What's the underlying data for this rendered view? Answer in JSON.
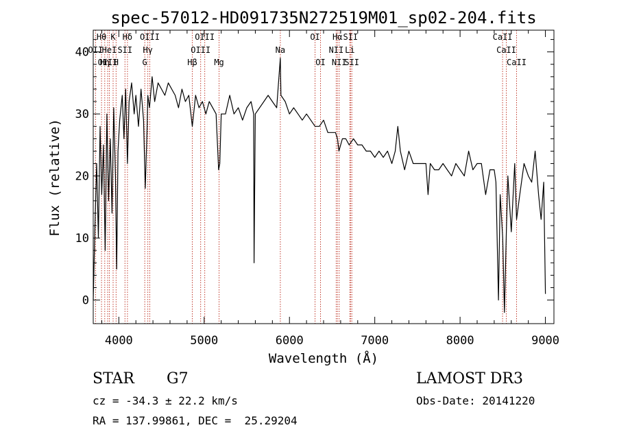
{
  "chart_data": {
    "type": "line",
    "title": "spec-57012-HD091735N272519M01_sp02-204.fits",
    "xlabel": "Wavelength (Å)",
    "ylabel": "Flux (relative)",
    "xlim": [
      3700,
      9100
    ],
    "ylim": [
      -3.8,
      43.5
    ],
    "xticks": [
      4000,
      5000,
      6000,
      7000,
      8000,
      9000
    ],
    "xtick_labels": [
      "4000",
      "5000",
      "6000",
      "7000",
      "8000",
      "9000"
    ],
    "yticks": [
      0,
      10,
      20,
      30,
      40
    ],
    "ytick_labels": [
      "0",
      "10",
      "20",
      "30",
      "40"
    ],
    "series": [
      {
        "name": "flux",
        "x": [
          3700,
          3720,
          3740,
          3760,
          3780,
          3800,
          3820,
          3840,
          3860,
          3880,
          3900,
          3920,
          3940,
          3960,
          3975,
          3990,
          4010,
          4040,
          4060,
          4080,
          4101,
          4120,
          4150,
          4180,
          4200,
          4230,
          4260,
          4290,
          4310,
          4330,
          4340,
          4360,
          4390,
          4420,
          4460,
          4500,
          4540,
          4580,
          4620,
          4660,
          4700,
          4740,
          4780,
          4820,
          4861,
          4900,
          4940,
          4980,
          5020,
          5060,
          5100,
          5140,
          5170,
          5183,
          5200,
          5250,
          5300,
          5350,
          5400,
          5450,
          5500,
          5550,
          5580,
          5585,
          5600,
          5650,
          5700,
          5750,
          5800,
          5850,
          5893,
          5900,
          5950,
          6000,
          6050,
          6100,
          6150,
          6200,
          6250,
          6300,
          6350,
          6400,
          6450,
          6500,
          6540,
          6563,
          6580,
          6620,
          6660,
          6700,
          6750,
          6800,
          6850,
          6900,
          6950,
          7000,
          7050,
          7100,
          7150,
          7200,
          7240,
          7270,
          7300,
          7350,
          7400,
          7450,
          7500,
          7550,
          7600,
          7625,
          7650,
          7700,
          7750,
          7800,
          7850,
          7900,
          7950,
          8000,
          8050,
          8100,
          8150,
          8200,
          8250,
          8300,
          8350,
          8400,
          8420,
          8450,
          8470,
          8500,
          8520,
          8542,
          8560,
          8600,
          8640,
          8662,
          8700,
          8750,
          8800,
          8840,
          8880,
          8920,
          8950,
          8980,
          9000
        ],
        "y": [
          0,
          12,
          22,
          10,
          28,
          17,
          25,
          8,
          30,
          16,
          26,
          14,
          31,
          20,
          5,
          24,
          29,
          33,
          26,
          34,
          22,
          32,
          35,
          30,
          33,
          28,
          34,
          29,
          18,
          27,
          33,
          31,
          36,
          32,
          35,
          34,
          33,
          35,
          34,
          33,
          31,
          34,
          32,
          33,
          28,
          33,
          31,
          32,
          30,
          32,
          31,
          30,
          21,
          22,
          30,
          30,
          33,
          30,
          31,
          29,
          31,
          32,
          30,
          6,
          30,
          31,
          32,
          33,
          32,
          31,
          39,
          33,
          32,
          30,
          31,
          30,
          29,
          30,
          29,
          28,
          28,
          29,
          27,
          27,
          27,
          26,
          24,
          26,
          26,
          25,
          26,
          25,
          25,
          24,
          24,
          23,
          24,
          23,
          24,
          22,
          24,
          28,
          24,
          21,
          24,
          22,
          22,
          22,
          22,
          17,
          22,
          21,
          21,
          22,
          21,
          20,
          22,
          21,
          20,
          24,
          21,
          22,
          22,
          17,
          21,
          21,
          19,
          0,
          17,
          10,
          -2,
          11,
          20,
          11,
          22,
          13,
          17,
          22,
          20,
          19,
          24,
          17,
          13,
          19,
          1
        ]
      }
    ],
    "spectral_lines": [
      {
        "label": "Hθ",
        "wavelength": 3797
      },
      {
        "label": "OII",
        "wavelength": 3727
      },
      {
        "label": "OIII",
        "wavelength": 3869
      },
      {
        "label": "Hη",
        "wavelength": 3835
      },
      {
        "label": "K",
        "wavelength": 3933
      },
      {
        "label": "H",
        "wavelength": 3968
      },
      {
        "label": "HeI",
        "wavelength": 3889
      },
      {
        "label": "SII",
        "wavelength": 4072
      },
      {
        "label": "Hδ",
        "wavelength": 4101
      },
      {
        "label": "OIII",
        "wavelength": 4363
      },
      {
        "label": "Hγ",
        "wavelength": 4340
      },
      {
        "label": "G",
        "wavelength": 4304
      },
      {
        "label": "Hβ",
        "wavelength": 4861
      },
      {
        "label": "OIII",
        "wavelength": 5007
      },
      {
        "label": "OIII",
        "wavelength": 4959
      },
      {
        "label": "Mg",
        "wavelength": 5175
      },
      {
        "label": "Na",
        "wavelength": 5893
      },
      {
        "label": "OI",
        "wavelength": 6300
      },
      {
        "label": "OI",
        "wavelength": 6364
      },
      {
        "label": "Hα",
        "wavelength": 6563
      },
      {
        "label": "NII",
        "wavelength": 6548
      },
      {
        "label": "NII",
        "wavelength": 6583
      },
      {
        "label": "SII",
        "wavelength": 6716
      },
      {
        "label": "Li",
        "wavelength": 6708
      },
      {
        "label": "SII",
        "wavelength": 6731
      },
      {
        "label": "CaII",
        "wavelength": 8498
      },
      {
        "label": "CaII",
        "wavelength": 8542
      },
      {
        "label": "CaII",
        "wavelength": 8662
      }
    ],
    "line_color": "#000000",
    "marker_color": "#c0392b",
    "grid": false
  },
  "info": {
    "class_label": "STAR",
    "subclass": "G7",
    "survey": "LAMOST DR3",
    "redshift_text": "cz = -34.3 ± 22.2 km/s",
    "obs_date": "Obs-Date: 20141220",
    "coords": "RA = 137.99861, DEC =  25.29204"
  }
}
